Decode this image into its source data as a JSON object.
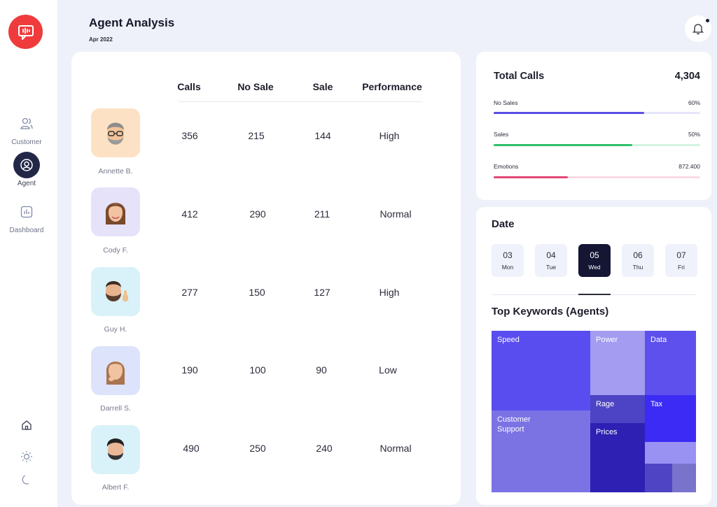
{
  "sidebar": {
    "items": [
      {
        "label": "Customer",
        "icon": "users-icon"
      },
      {
        "label": "Agent",
        "icon": "user-circle-icon"
      },
      {
        "label": "Dashboard",
        "icon": "chart-icon"
      }
    ],
    "bottom_icons": [
      "home-icon",
      "sun-icon",
      "moon-icon"
    ]
  },
  "header": {
    "title": "Agent Analysis",
    "subtitle": "Apr 2022"
  },
  "table": {
    "headers": [
      "Calls",
      "No Sale",
      "Sale",
      "Performance"
    ],
    "rows": [
      {
        "name": "Annette B.",
        "calls": "356",
        "no_sale": "215",
        "sale": "144",
        "performance": "High"
      },
      {
        "name": "Cody F.",
        "calls": "412",
        "no_sale": "290",
        "sale": "211",
        "performance": "Normal"
      },
      {
        "name": "Guy H.",
        "calls": "277",
        "no_sale": "150",
        "sale": "127",
        "performance": "High"
      },
      {
        "name": "Darrell S.",
        "calls": "190",
        "no_sale": "100",
        "sale": "90",
        "performance": "Low"
      },
      {
        "name": "Albert F.",
        "calls": "490",
        "no_sale": "250",
        "sale": "240",
        "performance": "Normal"
      }
    ]
  },
  "total_calls": {
    "title": "Total Calls",
    "value": "4,304",
    "metrics": [
      {
        "label": "No Sales",
        "value": "60%",
        "fill_fraction": 0.73,
        "fill_color": "#5a4de6",
        "track_color": "#e6e5fb"
      },
      {
        "label": "Sales",
        "value": "50%",
        "fill_fraction": 0.67,
        "fill_color": "#2fc06a",
        "track_color": "#d3f3e0"
      },
      {
        "label": "Emotions",
        "value": "872.400",
        "fill_fraction": 0.36,
        "fill_color": "#e04a76",
        "track_color": "#fbdbe6"
      }
    ]
  },
  "date": {
    "title": "Date",
    "days": [
      {
        "num": "03",
        "name": "Mon",
        "active": false
      },
      {
        "num": "04",
        "name": "Tue",
        "active": false
      },
      {
        "num": "05",
        "name": "Wed",
        "active": true
      },
      {
        "num": "06",
        "name": "Thu",
        "active": false
      },
      {
        "num": "07",
        "name": "Fri",
        "active": false
      }
    ]
  },
  "keywords": {
    "title": "Top Keywords (Agents)",
    "tiles": [
      {
        "label": "Speed",
        "color": "#5a4df0"
      },
      {
        "label": "Power",
        "color": "#a39cf0"
      },
      {
        "label": "Data",
        "color": "#5d50ec"
      },
      {
        "label": "Customer\nSupport",
        "color": "#7b72e4"
      },
      {
        "label": "Rage",
        "color": "#4c44c4"
      },
      {
        "label": "Tax",
        "color": "#3b2bf4"
      },
      {
        "label": "Prices",
        "color": "#2d20b3"
      },
      {
        "label": "",
        "color": "#9a92f2"
      },
      {
        "label": "",
        "color": "#4f45c4"
      },
      {
        "label": "",
        "color": "#7a73cb"
      }
    ]
  },
  "colors": {
    "logo": "#ef3b3b",
    "active_nav": "#232747",
    "active_day": "#141634"
  }
}
